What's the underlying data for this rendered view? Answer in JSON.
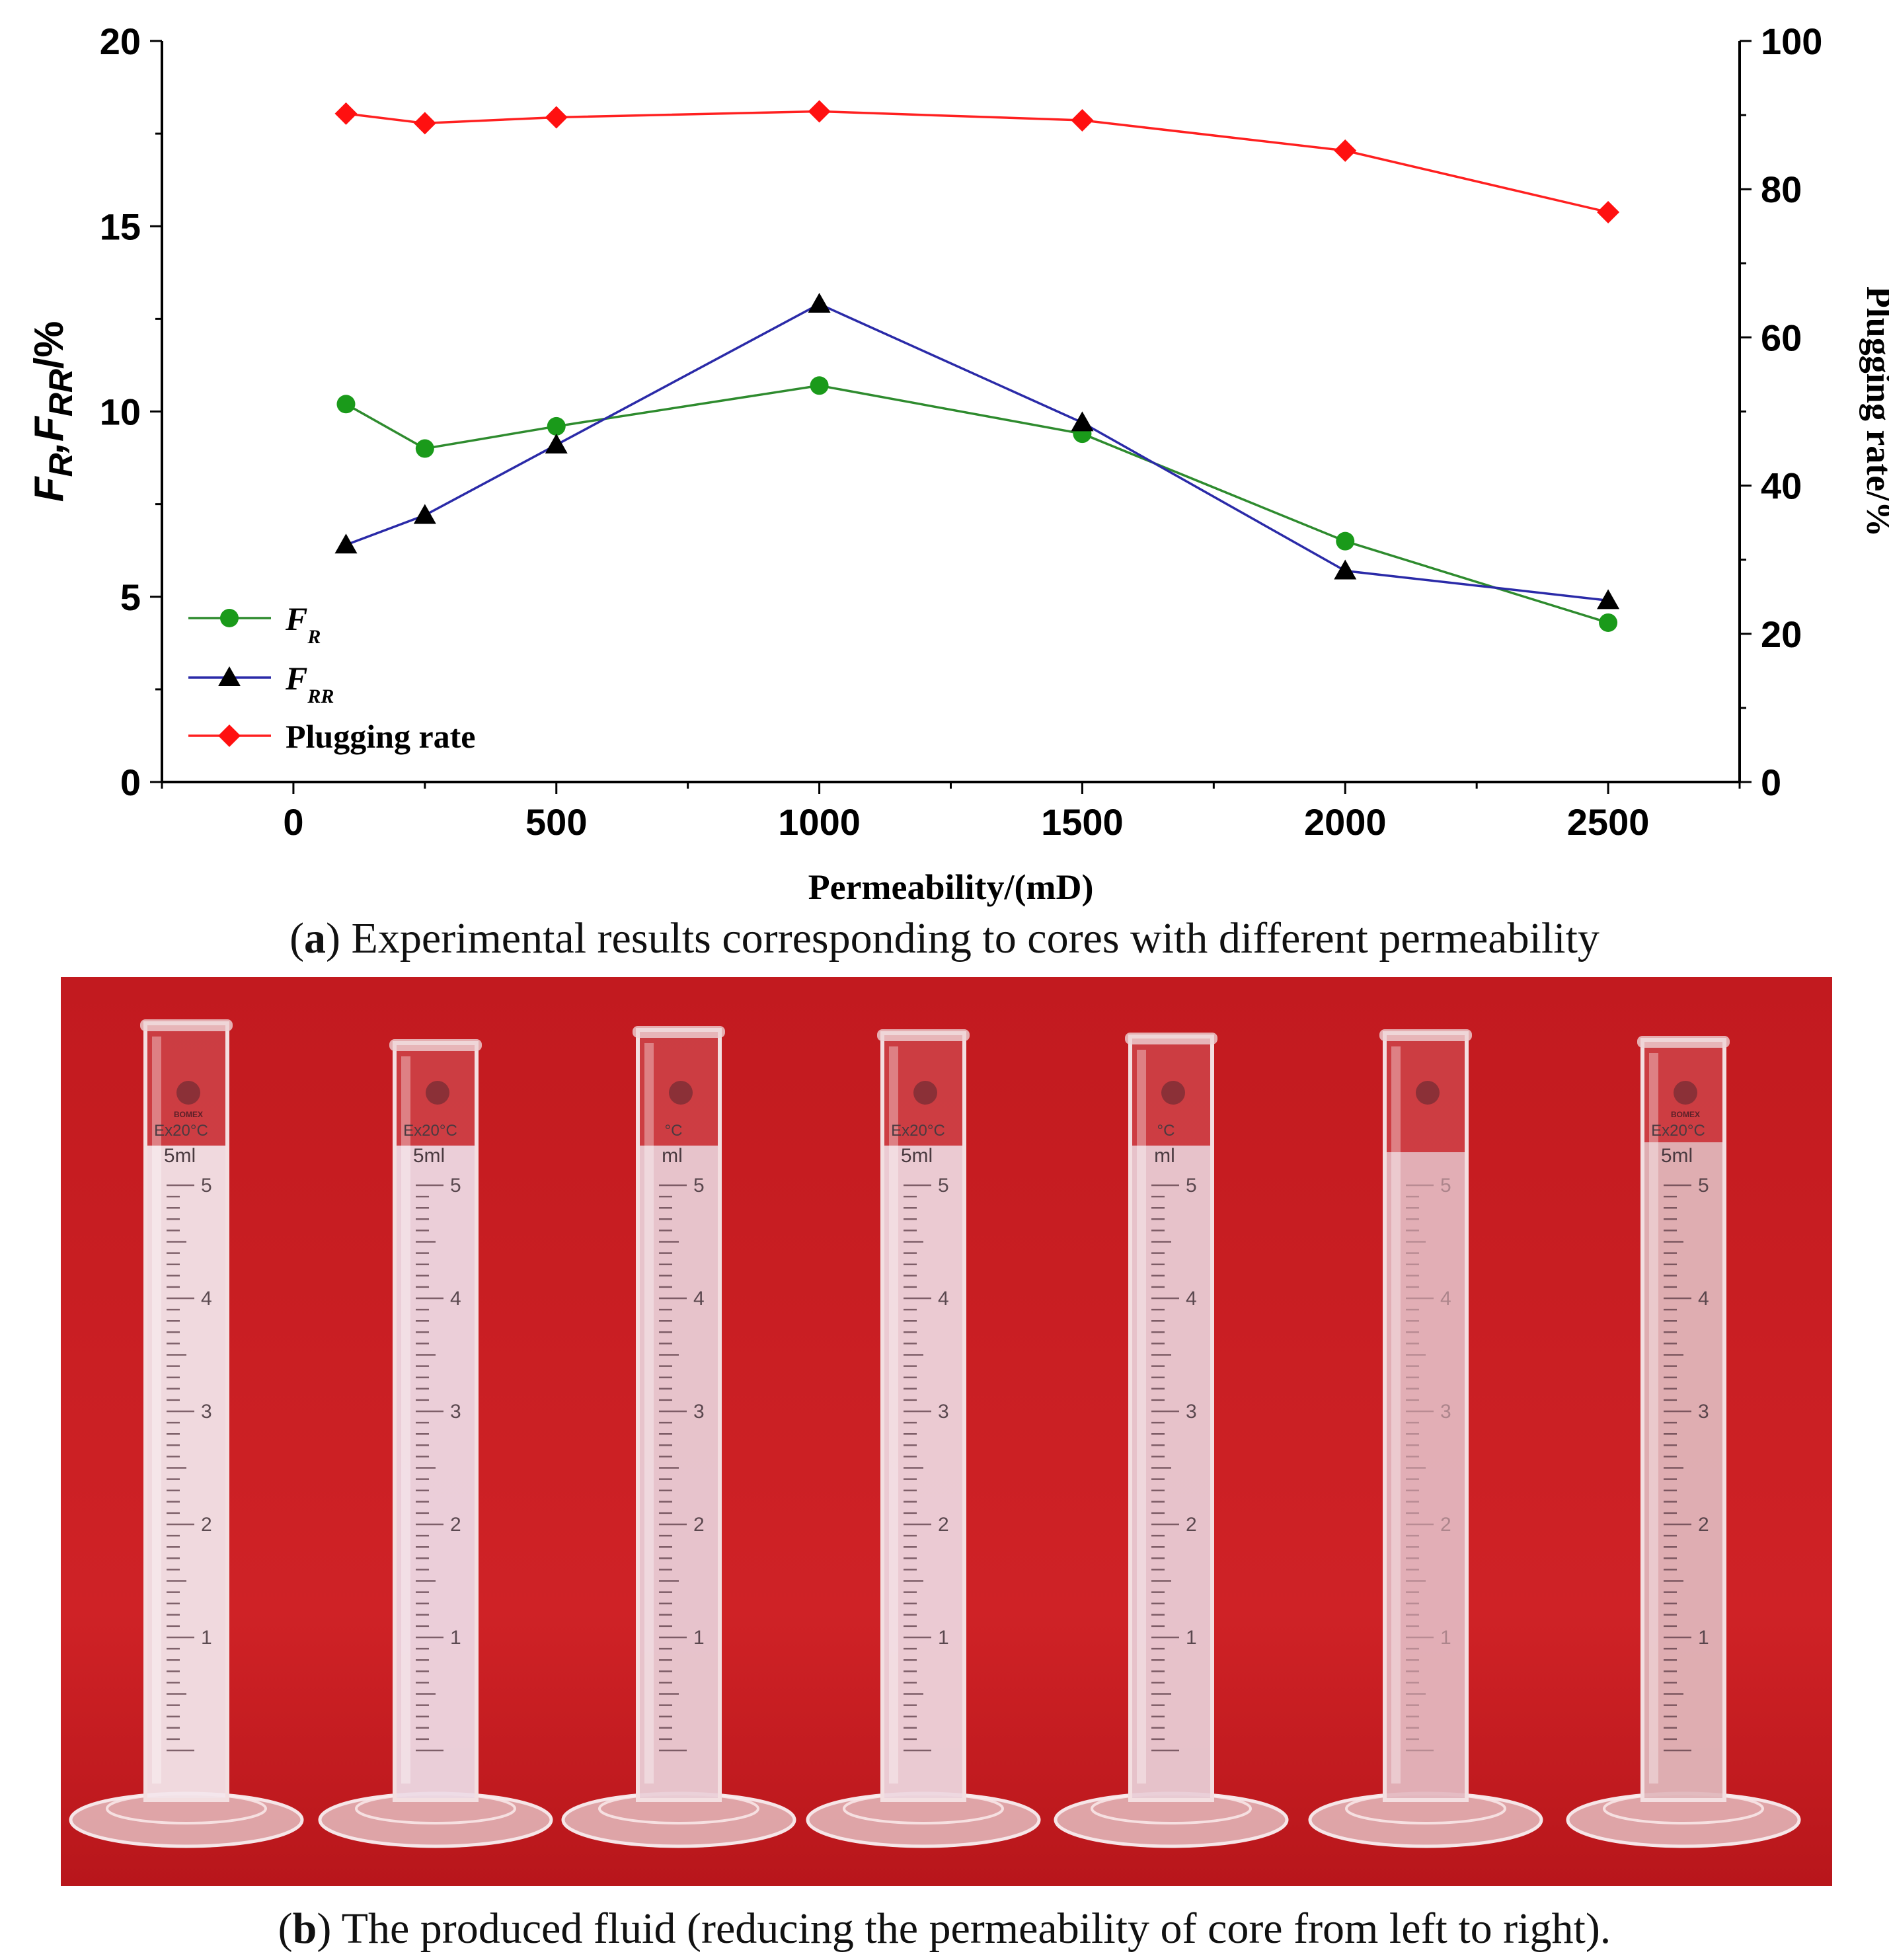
{
  "chart_data": {
    "type": "line",
    "title": "",
    "xlabel": "Permeability/(mD)",
    "ylabel_left": "F_R,F_RR/%",
    "ylabel_right": "Plugging rate/%",
    "xlim": [
      -250,
      2750
    ],
    "ylim_left": [
      0,
      20
    ],
    "ylim_right": [
      0,
      100
    ],
    "x_ticks": [
      "0",
      "500",
      "1000",
      "1500",
      "2000",
      "2500"
    ],
    "y_left_ticks": [
      "0",
      "5",
      "10",
      "15",
      "20"
    ],
    "y_right_ticks": [
      "0",
      "20",
      "40",
      "60",
      "80",
      "100"
    ],
    "x": [
      100,
      250,
      500,
      1000,
      1500,
      2000,
      2500
    ],
    "series": [
      {
        "name": "F_R",
        "axis": "left",
        "marker": "circle",
        "line_color": "#2e8b2e",
        "marker_color": "#1a9a1a",
        "values": [
          10.2,
          9.0,
          9.6,
          10.7,
          9.4,
          6.5,
          4.3
        ]
      },
      {
        "name": "F_RR",
        "axis": "left",
        "marker": "triangle",
        "line_color": "#2a2aa8",
        "marker_color": "#000000",
        "values": [
          6.4,
          7.2,
          9.1,
          12.9,
          9.7,
          5.7,
          4.9
        ]
      },
      {
        "name": "Plugging rate",
        "axis": "right",
        "marker": "diamond",
        "line_color": "#ff2020",
        "marker_color": "#ff1010",
        "values": [
          90.2,
          88.9,
          89.7,
          90.5,
          89.3,
          85.2,
          76.9
        ]
      }
    ],
    "legend": {
      "placement": "bottom-left",
      "entries": [
        {
          "main": "F",
          "sub": "R"
        },
        {
          "main": "F",
          "sub": "RR"
        },
        {
          "main": "Plugging rate",
          "sub": ""
        }
      ]
    },
    "grid": false
  },
  "captions": {
    "a_letter": "a",
    "a_text": "Experimental results corresponding to cores with different permeability",
    "b_letter": "b",
    "b_text": "The produced fluid (reducing the permeability of core from left to right)."
  },
  "photo": {
    "background_color": "#c81e22",
    "cylinders": [
      {
        "brand": "BOMEX",
        "temp": "Ex20°C",
        "volume": "5ml",
        "scale": [
          "5",
          "4",
          "3",
          "2",
          "1"
        ]
      },
      {
        "brand": "",
        "temp": "Ex20°C",
        "volume": "5ml",
        "scale": [
          "5",
          "4",
          "3",
          "2",
          "1"
        ]
      },
      {
        "brand": "",
        "temp": "°C",
        "volume": "ml",
        "scale": [
          "5",
          "4",
          "3",
          "2",
          "1"
        ]
      },
      {
        "brand": "",
        "temp": "Ex20°C",
        "volume": "5ml",
        "scale": [
          "5",
          "4",
          "3",
          "2",
          "1"
        ]
      },
      {
        "brand": "",
        "temp": "°C",
        "volume": "ml",
        "scale": [
          "5",
          "4",
          "3",
          "2",
          "1"
        ]
      },
      {
        "brand": "",
        "temp": "",
        "volume": "",
        "scale": [
          "5",
          "4",
          "3",
          "2",
          "1"
        ]
      },
      {
        "brand": "BOMEX",
        "temp": "Ex20°C",
        "volume": "5ml",
        "scale": [
          "5",
          "4",
          "3",
          "2",
          "1"
        ]
      }
    ],
    "liquid_tints": [
      "#f3e9ef",
      "#ebdbe7",
      "#e7cdd6",
      "#ebd6df",
      "#e6cbd5",
      "#dfb1ba",
      "#dcb0b4"
    ]
  }
}
